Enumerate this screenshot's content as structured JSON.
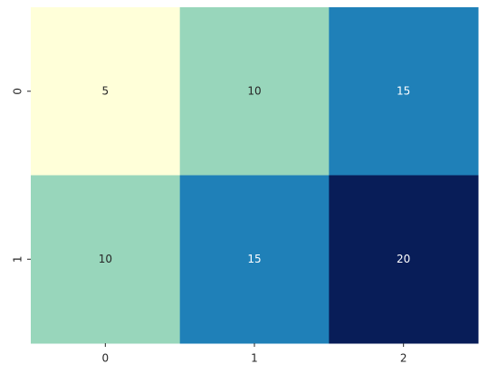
{
  "chart_data": {
    "type": "heatmap",
    "x_categories": [
      "0",
      "1",
      "2"
    ],
    "y_categories": [
      "0",
      "1"
    ],
    "values": [
      [
        5,
        10,
        15
      ],
      [
        10,
        15,
        20
      ]
    ],
    "colors": [
      [
        "#ffffd9",
        "#98d6bb",
        "#1f80b8"
      ],
      [
        "#98d6bb",
        "#1f80b8",
        "#081d58"
      ]
    ],
    "label_colors": [
      [
        "#262626",
        "#262626",
        "#ffffff"
      ],
      [
        "#262626",
        "#ffffff",
        "#ffffff"
      ]
    ]
  }
}
